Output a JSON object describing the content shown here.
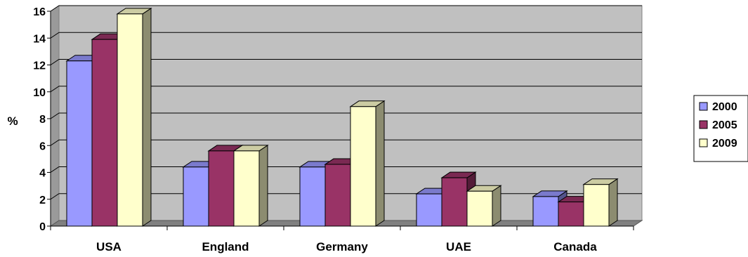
{
  "chart_data": {
    "type": "bar",
    "title": "",
    "xlabel": "",
    "ylabel": "%",
    "ylim": [
      0,
      16
    ],
    "yticks": [
      0,
      2,
      4,
      6,
      8,
      10,
      12,
      14,
      16
    ],
    "grid": true,
    "legend_position": "right",
    "categories": [
      "USA",
      "England",
      "Germany",
      "UAE",
      "Canada"
    ],
    "series": [
      {
        "name": "2000",
        "color": "#9999FF",
        "values": [
          12.3,
          4.4,
          4.4,
          2.4,
          2.2
        ]
      },
      {
        "name": "2005",
        "color": "#993366",
        "values": [
          13.9,
          5.6,
          4.6,
          3.6,
          1.8
        ]
      },
      {
        "name": "2009",
        "color": "#FFFFCC",
        "values": [
          15.8,
          5.6,
          8.9,
          2.6,
          3.1
        ]
      }
    ]
  }
}
